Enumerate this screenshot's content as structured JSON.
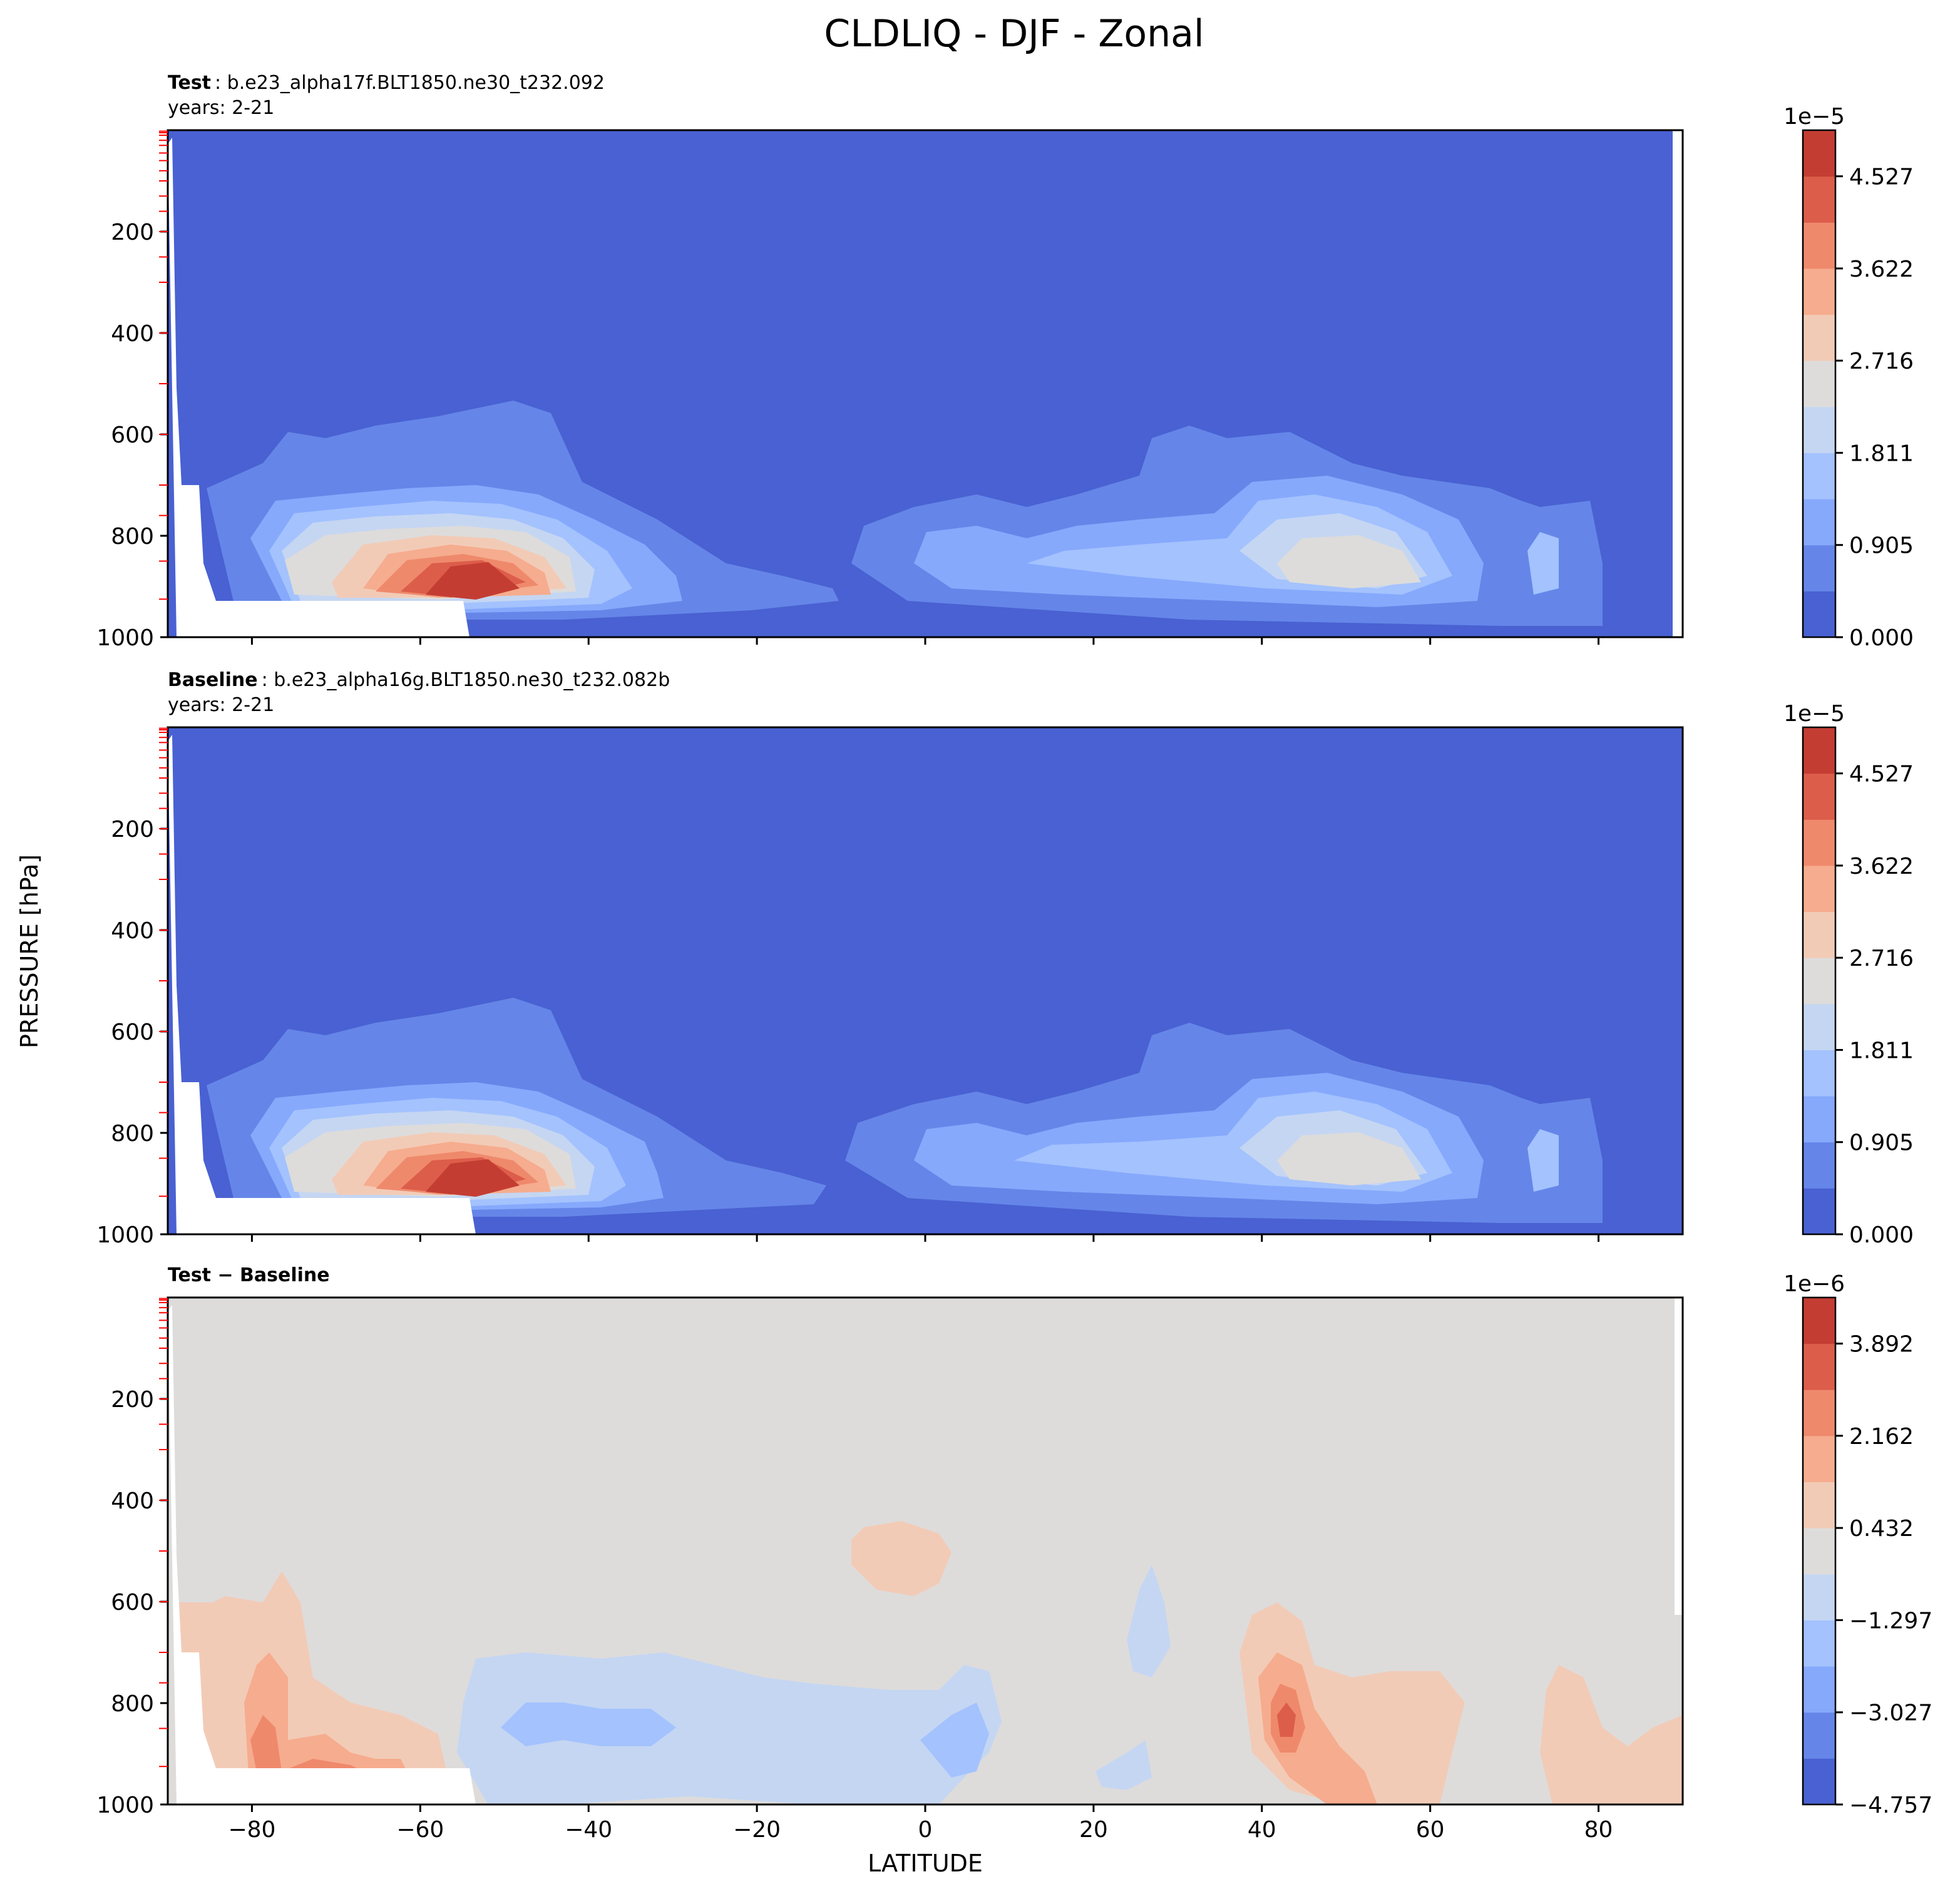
{
  "figure": {
    "suptitle": "CLDLIQ - DJF - Zonal",
    "xlabel": "LATITUDE",
    "ylabel": "PRESSURE [hPa]"
  },
  "chart_data": [
    {
      "type": "contour",
      "panel": "test",
      "title_bold": "Test",
      "title_rest": ": b.e23_alpha17f.BLT1850.ne30_t232.092",
      "subtitle": "years: 2-21",
      "xlim": [
        -90,
        90
      ],
      "ylim": [
        1000,
        0
      ],
      "yticks": [
        200,
        400,
        600,
        800,
        1000
      ],
      "xticks": [
        -80,
        -60,
        -40,
        -20,
        0,
        20,
        40,
        60,
        80
      ],
      "colorbar": {
        "exponent": "1e−5",
        "ticks": [
          "0.000",
          "0.905",
          "1.811",
          "2.716",
          "3.622",
          "4.527"
        ],
        "vmin": 0.0,
        "vmax": 4.98,
        "levels": 11,
        "colors": [
          "#4961d2",
          "#6586e8",
          "#86a9fc",
          "#a3c2fe",
          "#c5d6f2",
          "#dddcdb",
          "#f2cbb7",
          "#f6ac8e",
          "#ef896c",
          "#dc5d4a",
          "#c43d33"
        ]
      },
      "features": [
        {
          "name": "sh-storm-track",
          "lat": -52,
          "p": 900,
          "peak": 4.9
        },
        {
          "name": "nh-storm-track",
          "lat": 47,
          "p": 860,
          "peak": 2.6
        },
        {
          "name": "tropics",
          "lat": 3,
          "p": 870,
          "peak": 1.0
        }
      ]
    },
    {
      "type": "contour",
      "panel": "baseline",
      "title_bold": "Baseline",
      "title_rest": ": b.e23_alpha16g.BLT1850.ne30_t232.082b",
      "subtitle": "years: 2-21",
      "xlim": [
        -90,
        90
      ],
      "ylim": [
        1000,
        0
      ],
      "yticks": [
        200,
        400,
        600,
        800,
        1000
      ],
      "xticks": [
        -80,
        -60,
        -40,
        -20,
        0,
        20,
        40,
        60,
        80
      ],
      "colorbar": {
        "exponent": "1e−5",
        "ticks": [
          "0.000",
          "0.905",
          "1.811",
          "2.716",
          "3.622",
          "4.527"
        ],
        "vmin": 0.0,
        "vmax": 4.98,
        "levels": 11,
        "colors": [
          "#4961d2",
          "#6586e8",
          "#86a9fc",
          "#a3c2fe",
          "#c5d6f2",
          "#dddcdb",
          "#f2cbb7",
          "#f6ac8e",
          "#ef896c",
          "#dc5d4a",
          "#c43d33"
        ]
      },
      "features": [
        {
          "name": "sh-storm-track",
          "lat": -52,
          "p": 900,
          "peak": 4.9
        },
        {
          "name": "nh-storm-track",
          "lat": 47,
          "p": 860,
          "peak": 2.7
        },
        {
          "name": "tropics",
          "lat": 3,
          "p": 870,
          "peak": 1.1
        }
      ]
    },
    {
      "type": "contour",
      "panel": "difference",
      "title_bold": "Test − Baseline",
      "title_rest": "",
      "subtitle": "",
      "xlim": [
        -90,
        90
      ],
      "ylim": [
        1000,
        0
      ],
      "yticks": [
        200,
        400,
        600,
        800,
        1000
      ],
      "xticks": [
        -80,
        -60,
        -40,
        -20,
        0,
        20,
        40,
        60,
        80
      ],
      "colorbar": {
        "exponent": "1e−6",
        "ticks": [
          "−4.757",
          "−3.027",
          "−1.297",
          "0.432",
          "2.162",
          "3.892"
        ],
        "vmin": -4.757,
        "vmax": 4.757,
        "levels": 11,
        "colors": [
          "#4961d2",
          "#6586e8",
          "#86a9fc",
          "#a3c2fe",
          "#c5d6f2",
          "#dddcdb",
          "#f2cbb7",
          "#f6ac8e",
          "#ef896c",
          "#dc5d4a",
          "#c43d33"
        ]
      },
      "features": [
        {
          "name": "sh-polar-positive",
          "lat": -72,
          "p": 920,
          "peak": 4.5
        },
        {
          "name": "sh-midlat-negative",
          "lat": -40,
          "p": 850,
          "peak": -2.0
        },
        {
          "name": "nh-midlat-positive",
          "lat": 43,
          "p": 840,
          "peak": 3.5
        },
        {
          "name": "upper-trop-positive",
          "lat": -1,
          "p": 490,
          "peak": 1.0
        }
      ]
    }
  ]
}
